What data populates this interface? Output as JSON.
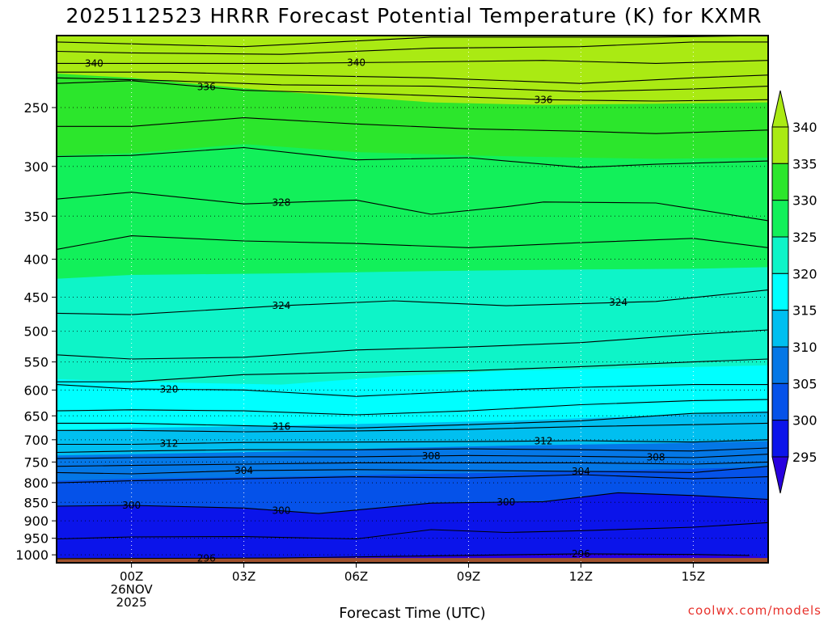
{
  "chart_data": {
    "type": "heatmap",
    "subtype": "filled-contour time-height cross-section",
    "title": "2025112523 HRRR Forecast Potential Temperature (K) for KXMR",
    "xlabel": "Forecast Time (UTC)",
    "ylabel": "",
    "credit": "coolwx.com/models",
    "x_range_hours": [
      -2,
      17
    ],
    "x_ticks": [
      {
        "hour": 0,
        "lines": [
          "00Z",
          "26NOV",
          "2025"
        ]
      },
      {
        "hour": 3,
        "lines": [
          "03Z"
        ]
      },
      {
        "hour": 6,
        "lines": [
          "06Z"
        ]
      },
      {
        "hour": 9,
        "lines": [
          "09Z"
        ]
      },
      {
        "hour": 12,
        "lines": [
          "12Z"
        ]
      },
      {
        "hour": 15,
        "lines": [
          "15Z"
        ]
      }
    ],
    "y_scale": "log",
    "y_range_hPa": [
      1025,
      200
    ],
    "y_ticks": [
      250,
      300,
      350,
      400,
      450,
      500,
      550,
      600,
      650,
      700,
      750,
      800,
      850,
      900,
      950,
      1000
    ],
    "grid": "dotted",
    "colorbar": {
      "position": "right",
      "ticks": [
        340,
        335,
        330,
        325,
        320,
        315,
        310,
        305,
        300,
        295
      ],
      "bands": [
        {
          "min": 335,
          "max": 345,
          "color": "#aaea13"
        },
        {
          "min": 330,
          "max": 335,
          "color": "#2ce62c"
        },
        {
          "min": 325,
          "max": 330,
          "color": "#12f05a"
        },
        {
          "min": 320,
          "max": 325,
          "color": "#0ef4c8"
        },
        {
          "min": 315,
          "max": 320,
          "color": "#00ffff"
        },
        {
          "min": 310,
          "max": 315,
          "color": "#00bff0"
        },
        {
          "min": 305,
          "max": 310,
          "color": "#0477e6"
        },
        {
          "min": 300,
          "max": 305,
          "color": "#0552e9"
        },
        {
          "min": 295,
          "max": 300,
          "color": "#0b14ea"
        },
        {
          "min": 285,
          "max": 295,
          "color": "#2800df"
        }
      ]
    },
    "ground_color": "#a0522d",
    "ground_level_hPa": 1010,
    "band_boundaries": [
      {
        "theta": 335,
        "p": [
          [
            -2,
            225
          ],
          [
            0,
            228
          ],
          [
            4,
            238
          ],
          [
            8,
            246
          ],
          [
            11,
            248
          ],
          [
            14,
            247
          ],
          [
            17,
            246
          ]
        ]
      },
      {
        "theta": 330,
        "p": [
          [
            -2,
            290
          ],
          [
            0,
            288
          ],
          [
            3,
            280
          ],
          [
            6,
            287
          ],
          [
            9,
            290
          ],
          [
            12,
            292
          ],
          [
            14,
            293
          ],
          [
            17,
            292
          ]
        ]
      },
      {
        "theta": 325,
        "p": [
          [
            -2,
            425
          ],
          [
            0,
            420
          ],
          [
            4,
            418
          ],
          [
            8,
            415
          ],
          [
            12,
            413
          ],
          [
            15,
            412
          ],
          [
            17,
            410
          ]
        ]
      },
      {
        "theta": 320,
        "p": [
          [
            -2,
            580
          ],
          [
            0,
            585
          ],
          [
            4,
            590
          ],
          [
            7,
            575
          ],
          [
            10,
            565
          ],
          [
            14,
            560
          ],
          [
            17,
            556
          ]
        ]
      },
      {
        "theta": 315,
        "p": [
          [
            -2,
            680
          ],
          [
            0,
            675
          ],
          [
            4,
            670
          ],
          [
            7,
            665
          ],
          [
            10,
            660
          ],
          [
            14,
            650
          ],
          [
            17,
            640
          ]
        ]
      },
      {
        "theta": 310,
        "p": [
          [
            -2,
            735
          ],
          [
            0,
            732
          ],
          [
            4,
            726
          ],
          [
            7,
            718
          ],
          [
            10,
            713
          ],
          [
            14,
            708
          ],
          [
            17,
            703
          ]
        ]
      },
      {
        "theta": 305,
        "p": [
          [
            -2,
            795
          ],
          [
            0,
            790
          ],
          [
            4,
            785
          ],
          [
            7,
            780
          ],
          [
            10,
            775
          ],
          [
            14,
            768
          ],
          [
            17,
            762
          ]
        ]
      },
      {
        "theta": 300,
        "p": [
          [
            -2,
            860
          ],
          [
            0,
            858
          ],
          [
            3,
            865
          ],
          [
            5,
            880
          ],
          [
            8,
            852
          ],
          [
            11,
            848
          ],
          [
            13,
            825
          ],
          [
            15,
            832
          ],
          [
            17,
            842
          ]
        ]
      },
      {
        "theta": 295,
        "p": [
          [
            -2,
            1010
          ],
          [
            4,
            1010
          ],
          [
            7,
            1005
          ],
          [
            12,
            997
          ],
          [
            15,
            999
          ],
          [
            16.5,
            1002
          ],
          [
            17,
            1010
          ]
        ]
      }
    ],
    "contour_lines": [
      {
        "p": [
          [
            -2,
            204
          ],
          [
            3,
            207
          ],
          [
            8,
            201
          ],
          [
            14,
            201
          ],
          [
            17,
            200
          ]
        ]
      },
      {
        "p": [
          [
            -2,
            210
          ],
          [
            0,
            211
          ],
          [
            4,
            212
          ],
          [
            8,
            208
          ],
          [
            12,
            207
          ],
          [
            15,
            204
          ],
          [
            17,
            204
          ]
        ]
      },
      {
        "label": "340",
        "p": [
          [
            -2,
            218
          ],
          [
            0,
            218
          ],
          [
            4,
            218
          ],
          [
            8,
            217
          ],
          [
            11,
            216
          ],
          [
            14,
            218
          ],
          [
            17,
            216
          ]
        ]
      },
      {
        "p": [
          [
            -2,
            224
          ],
          [
            1,
            224
          ],
          [
            4,
            226
          ],
          [
            8,
            228
          ],
          [
            12,
            232
          ],
          [
            15,
            228
          ],
          [
            17,
            226
          ]
        ]
      },
      {
        "p": [
          [
            -2,
            228
          ],
          [
            1,
            230
          ],
          [
            4,
            233
          ],
          [
            8,
            234
          ],
          [
            12,
            238
          ],
          [
            15,
            236
          ],
          [
            17,
            234
          ]
        ]
      },
      {
        "label": "336",
        "p": [
          [
            -2,
            232
          ],
          [
            0,
            230
          ],
          [
            3,
            237
          ],
          [
            7,
            240
          ],
          [
            11,
            244
          ],
          [
            14,
            245
          ],
          [
            17,
            244
          ]
        ]
      },
      {
        "p": [
          [
            -2,
            265
          ],
          [
            0,
            265
          ],
          [
            3,
            258
          ],
          [
            6,
            263
          ],
          [
            9,
            267
          ],
          [
            12,
            269
          ],
          [
            14,
            271
          ],
          [
            17,
            268
          ]
        ]
      },
      {
        "p": [
          [
            -2,
            291
          ],
          [
            0,
            290
          ],
          [
            3,
            283
          ],
          [
            6,
            294
          ],
          [
            9,
            292
          ],
          [
            12,
            301
          ],
          [
            14,
            298
          ],
          [
            17,
            295
          ]
        ]
      },
      {
        "label": "328",
        "p": [
          [
            -2,
            332
          ],
          [
            0,
            325
          ],
          [
            3,
            337
          ],
          [
            6,
            333
          ],
          [
            8,
            348
          ],
          [
            10,
            340
          ],
          [
            11,
            335
          ],
          [
            14,
            336
          ],
          [
            17,
            355
          ]
        ]
      },
      {
        "p": [
          [
            -2,
            388
          ],
          [
            0,
            372
          ],
          [
            3,
            378
          ],
          [
            6,
            381
          ],
          [
            9,
            386
          ],
          [
            12,
            380
          ],
          [
            15,
            375
          ],
          [
            17,
            386
          ]
        ]
      },
      {
        "label": "324",
        "p": [
          [
            -2,
            473
          ],
          [
            0,
            475
          ],
          [
            4,
            462
          ],
          [
            7,
            455
          ],
          [
            10,
            462
          ],
          [
            14,
            456
          ],
          [
            17,
            440
          ]
        ]
      },
      {
        "p": [
          [
            -2,
            538
          ],
          [
            0,
            545
          ],
          [
            3,
            542
          ],
          [
            6,
            530
          ],
          [
            9,
            525
          ],
          [
            12,
            518
          ],
          [
            15,
            505
          ],
          [
            17,
            498
          ]
        ]
      },
      {
        "p": [
          [
            -2,
            585
          ],
          [
            0,
            585
          ],
          [
            3,
            572
          ],
          [
            6,
            568
          ],
          [
            9,
            565
          ],
          [
            12,
            558
          ],
          [
            15,
            550
          ],
          [
            17,
            545
          ]
        ]
      },
      {
        "label": "320",
        "p": [
          [
            -2,
            590
          ],
          [
            0,
            598
          ],
          [
            3,
            600
          ],
          [
            6,
            612
          ],
          [
            9,
            602
          ],
          [
            12,
            595
          ],
          [
            15,
            590
          ],
          [
            17,
            590
          ]
        ]
      },
      {
        "p": [
          [
            -2,
            640
          ],
          [
            0,
            638
          ],
          [
            3,
            640
          ],
          [
            6,
            648
          ],
          [
            9,
            640
          ],
          [
            12,
            628
          ],
          [
            15,
            620
          ],
          [
            17,
            618
          ]
        ]
      },
      {
        "label": "316",
        "p": [
          [
            -2,
            665
          ],
          [
            0,
            665
          ],
          [
            3,
            670
          ],
          [
            6,
            675
          ],
          [
            9,
            668
          ],
          [
            12,
            660
          ],
          [
            15,
            645
          ],
          [
            17,
            643
          ]
        ]
      },
      {
        "p": [
          [
            -2,
            680
          ],
          [
            0,
            680
          ],
          [
            3,
            683
          ],
          [
            6,
            681
          ],
          [
            9,
            678
          ],
          [
            12,
            672
          ],
          [
            15,
            668
          ],
          [
            17,
            665
          ]
        ]
      },
      {
        "label": "312",
        "p": [
          [
            -2,
            710
          ],
          [
            0,
            710
          ],
          [
            3,
            706
          ],
          [
            6,
            705
          ],
          [
            9,
            704
          ],
          [
            12,
            702
          ],
          [
            15,
            705
          ],
          [
            17,
            700
          ]
        ]
      },
      {
        "p": [
          [
            -2,
            728
          ],
          [
            0,
            725
          ],
          [
            3,
            722
          ],
          [
            6,
            722
          ],
          [
            9,
            720
          ],
          [
            12,
            722
          ],
          [
            15,
            725
          ],
          [
            17,
            718
          ]
        ]
      },
      {
        "label": "308",
        "p": [
          [
            -2,
            742
          ],
          [
            0,
            740
          ],
          [
            3,
            738
          ],
          [
            6,
            738
          ],
          [
            9,
            735
          ],
          [
            12,
            737
          ],
          [
            15,
            740
          ],
          [
            17,
            732
          ]
        ]
      },
      {
        "p": [
          [
            -2,
            760
          ],
          [
            0,
            758
          ],
          [
            3,
            755
          ],
          [
            6,
            752
          ],
          [
            9,
            752
          ],
          [
            12,
            752
          ],
          [
            15,
            755
          ],
          [
            17,
            750
          ]
        ]
      },
      {
        "label": "304",
        "p": [
          [
            -2,
            775
          ],
          [
            0,
            778
          ],
          [
            3,
            770
          ],
          [
            6,
            768
          ],
          [
            9,
            770
          ],
          [
            12,
            772
          ],
          [
            15,
            775
          ],
          [
            17,
            760
          ]
        ]
      },
      {
        "p": [
          [
            -2,
            800
          ],
          [
            0,
            795
          ],
          [
            3,
            790
          ],
          [
            6,
            785
          ],
          [
            9,
            788
          ],
          [
            12,
            780
          ],
          [
            15,
            790
          ],
          [
            17,
            785
          ]
        ]
      },
      {
        "label": "300",
        "p": [
          [
            -2,
            860
          ],
          [
            0,
            858
          ],
          [
            3,
            865
          ],
          [
            5,
            880
          ],
          [
            8,
            852
          ],
          [
            11,
            848
          ],
          [
            13,
            825
          ],
          [
            15,
            832
          ],
          [
            17,
            842
          ]
        ]
      },
      {
        "p": [
          [
            -2,
            952
          ],
          [
            0,
            946
          ],
          [
            3,
            945
          ],
          [
            6,
            952
          ],
          [
            8,
            925
          ],
          [
            10,
            933
          ],
          [
            12,
            928
          ],
          [
            15,
            918
          ],
          [
            17,
            905
          ]
        ]
      },
      {
        "label": "296",
        "p": [
          [
            -2,
            1012
          ],
          [
            4,
            1010
          ],
          [
            7,
            1005
          ],
          [
            12,
            997
          ],
          [
            15,
            999
          ],
          [
            16.5,
            1002
          ]
        ]
      }
    ]
  }
}
